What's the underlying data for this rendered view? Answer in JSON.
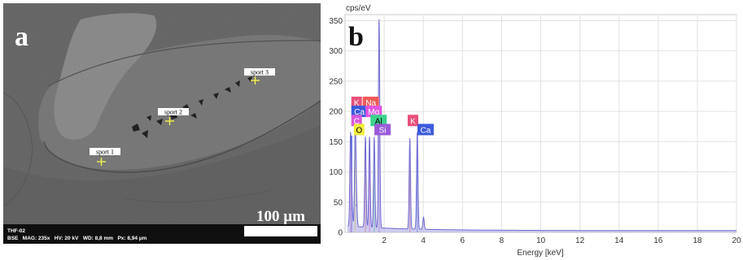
{
  "panel_a": {
    "label": "a",
    "spots": [
      {
        "name": "spot1",
        "label": "sport 1"
      },
      {
        "name": "spot2",
        "label": "sport 2"
      },
      {
        "name": "spot3",
        "label": "sport 3"
      }
    ],
    "scale_bar": "100 µm",
    "info_line1": "THF-02",
    "info_line2": "BSE   MAG: 235x   HV: 20 kV   WD: 8,8 mm   Px: 8,94 µm"
  },
  "panel_b": {
    "label": "b",
    "colors": {
      "K": "#e8507a",
      "Na": "#f05a5a",
      "Ca": "#3b5bdc",
      "Mg": "#e055e0",
      "C": "#d85ad8",
      "Al": "#3cd28c",
      "O": "#f2ee3c",
      "Si": "#9a5ad8"
    }
  },
  "chart_data": {
    "type": "line",
    "ylabel": "cps/eV",
    "xlabel": "Energy [keV]",
    "xlim": [
      0,
      20
    ],
    "ylim": [
      0,
      360
    ],
    "xticks": [
      2,
      4,
      6,
      8,
      10,
      12,
      14,
      16,
      18,
      20
    ],
    "yticks": [
      0,
      50,
      100,
      150,
      200,
      250,
      300,
      350
    ],
    "spectrum_peaks": [
      {
        "x": 0.28,
        "y": 150
      },
      {
        "x": 0.35,
        "y": 40
      },
      {
        "x": 0.52,
        "y": 160
      },
      {
        "x": 0.58,
        "y": 45
      },
      {
        "x": 1.04,
        "y": 150
      },
      {
        "x": 1.25,
        "y": 150
      },
      {
        "x": 1.49,
        "y": 150
      },
      {
        "x": 1.74,
        "y": 345
      },
      {
        "x": 3.31,
        "y": 150
      },
      {
        "x": 3.69,
        "y": 160
      },
      {
        "x": 4.01,
        "y": 20
      }
    ],
    "element_markers": [
      {
        "element": "K",
        "x": 0.3,
        "height": 130
      },
      {
        "element": "Ca",
        "x": 0.34,
        "height": 160
      },
      {
        "element": "C",
        "x": 0.28,
        "height": 150
      },
      {
        "element": "O",
        "x": 0.52,
        "height": 160
      },
      {
        "element": "Na",
        "x": 1.04,
        "height": 140
      },
      {
        "element": "Mg",
        "x": 1.25,
        "height": 150
      },
      {
        "element": "Al",
        "x": 1.49,
        "height": 150
      },
      {
        "element": "Si",
        "x": 1.74,
        "height": 160
      },
      {
        "element": "K",
        "x": 3.31,
        "height": 150
      },
      {
        "element": "Ca",
        "x": 3.69,
        "height": 160
      }
    ],
    "element_labels": [
      {
        "element": "K",
        "x": 0.32,
        "y": 215
      },
      {
        "element": "Na",
        "x": 0.9,
        "y": 215
      },
      {
        "element": "Ca",
        "x": 0.32,
        "y": 200
      },
      {
        "element": "Mg",
        "x": 1.05,
        "y": 200
      },
      {
        "element": "C",
        "x": 0.32,
        "y": 185
      },
      {
        "element": "Al",
        "x": 1.3,
        "y": 185
      },
      {
        "element": "O",
        "x": 0.45,
        "y": 170
      },
      {
        "element": "Si",
        "x": 1.5,
        "y": 170
      },
      {
        "element": "K",
        "x": 3.2,
        "y": 185
      },
      {
        "element": "Ca",
        "x": 3.7,
        "y": 170
      }
    ]
  }
}
